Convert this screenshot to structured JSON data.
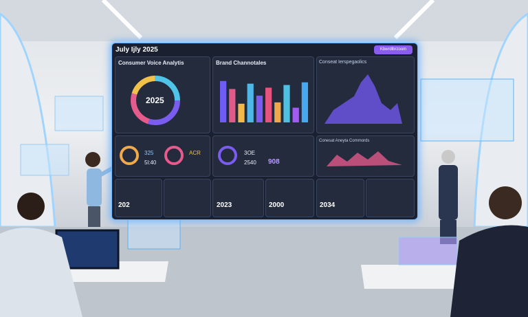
{
  "screen": {
    "title": "July Ijly 2025",
    "button": "Kbwrdlbrzoom"
  },
  "panels": {
    "voice": {
      "title": "Consumer Voice Analytis",
      "center": "2025"
    },
    "brand": {
      "title": "Brand Channotales",
      "values": [
        62,
        50,
        28,
        58,
        40,
        52,
        30,
        56,
        22,
        60
      ],
      "colors": [
        "#6f5cf2",
        "#e05a8a",
        "#f2b84a",
        "#4fb6e8",
        "#7a5cf0",
        "#e4547e",
        "#f0a94a",
        "#4fc0e0",
        "#a05cf0",
        "#47a8ef"
      ],
      "ylim": [
        0,
        70
      ]
    },
    "perspective": {
      "title": "Conseat Ierspegaolics"
    },
    "mid1": {
      "v1": "325",
      "v2": "5l:40",
      "v3": "ACR"
    },
    "mid2": {
      "v1": "3OE",
      "v2": "2540",
      "v3": "908"
    },
    "mid3": {
      "title": "Conesat Aneyta Commords"
    },
    "bottom": [
      "202",
      "2023",
      "2000",
      "2034"
    ]
  }
}
